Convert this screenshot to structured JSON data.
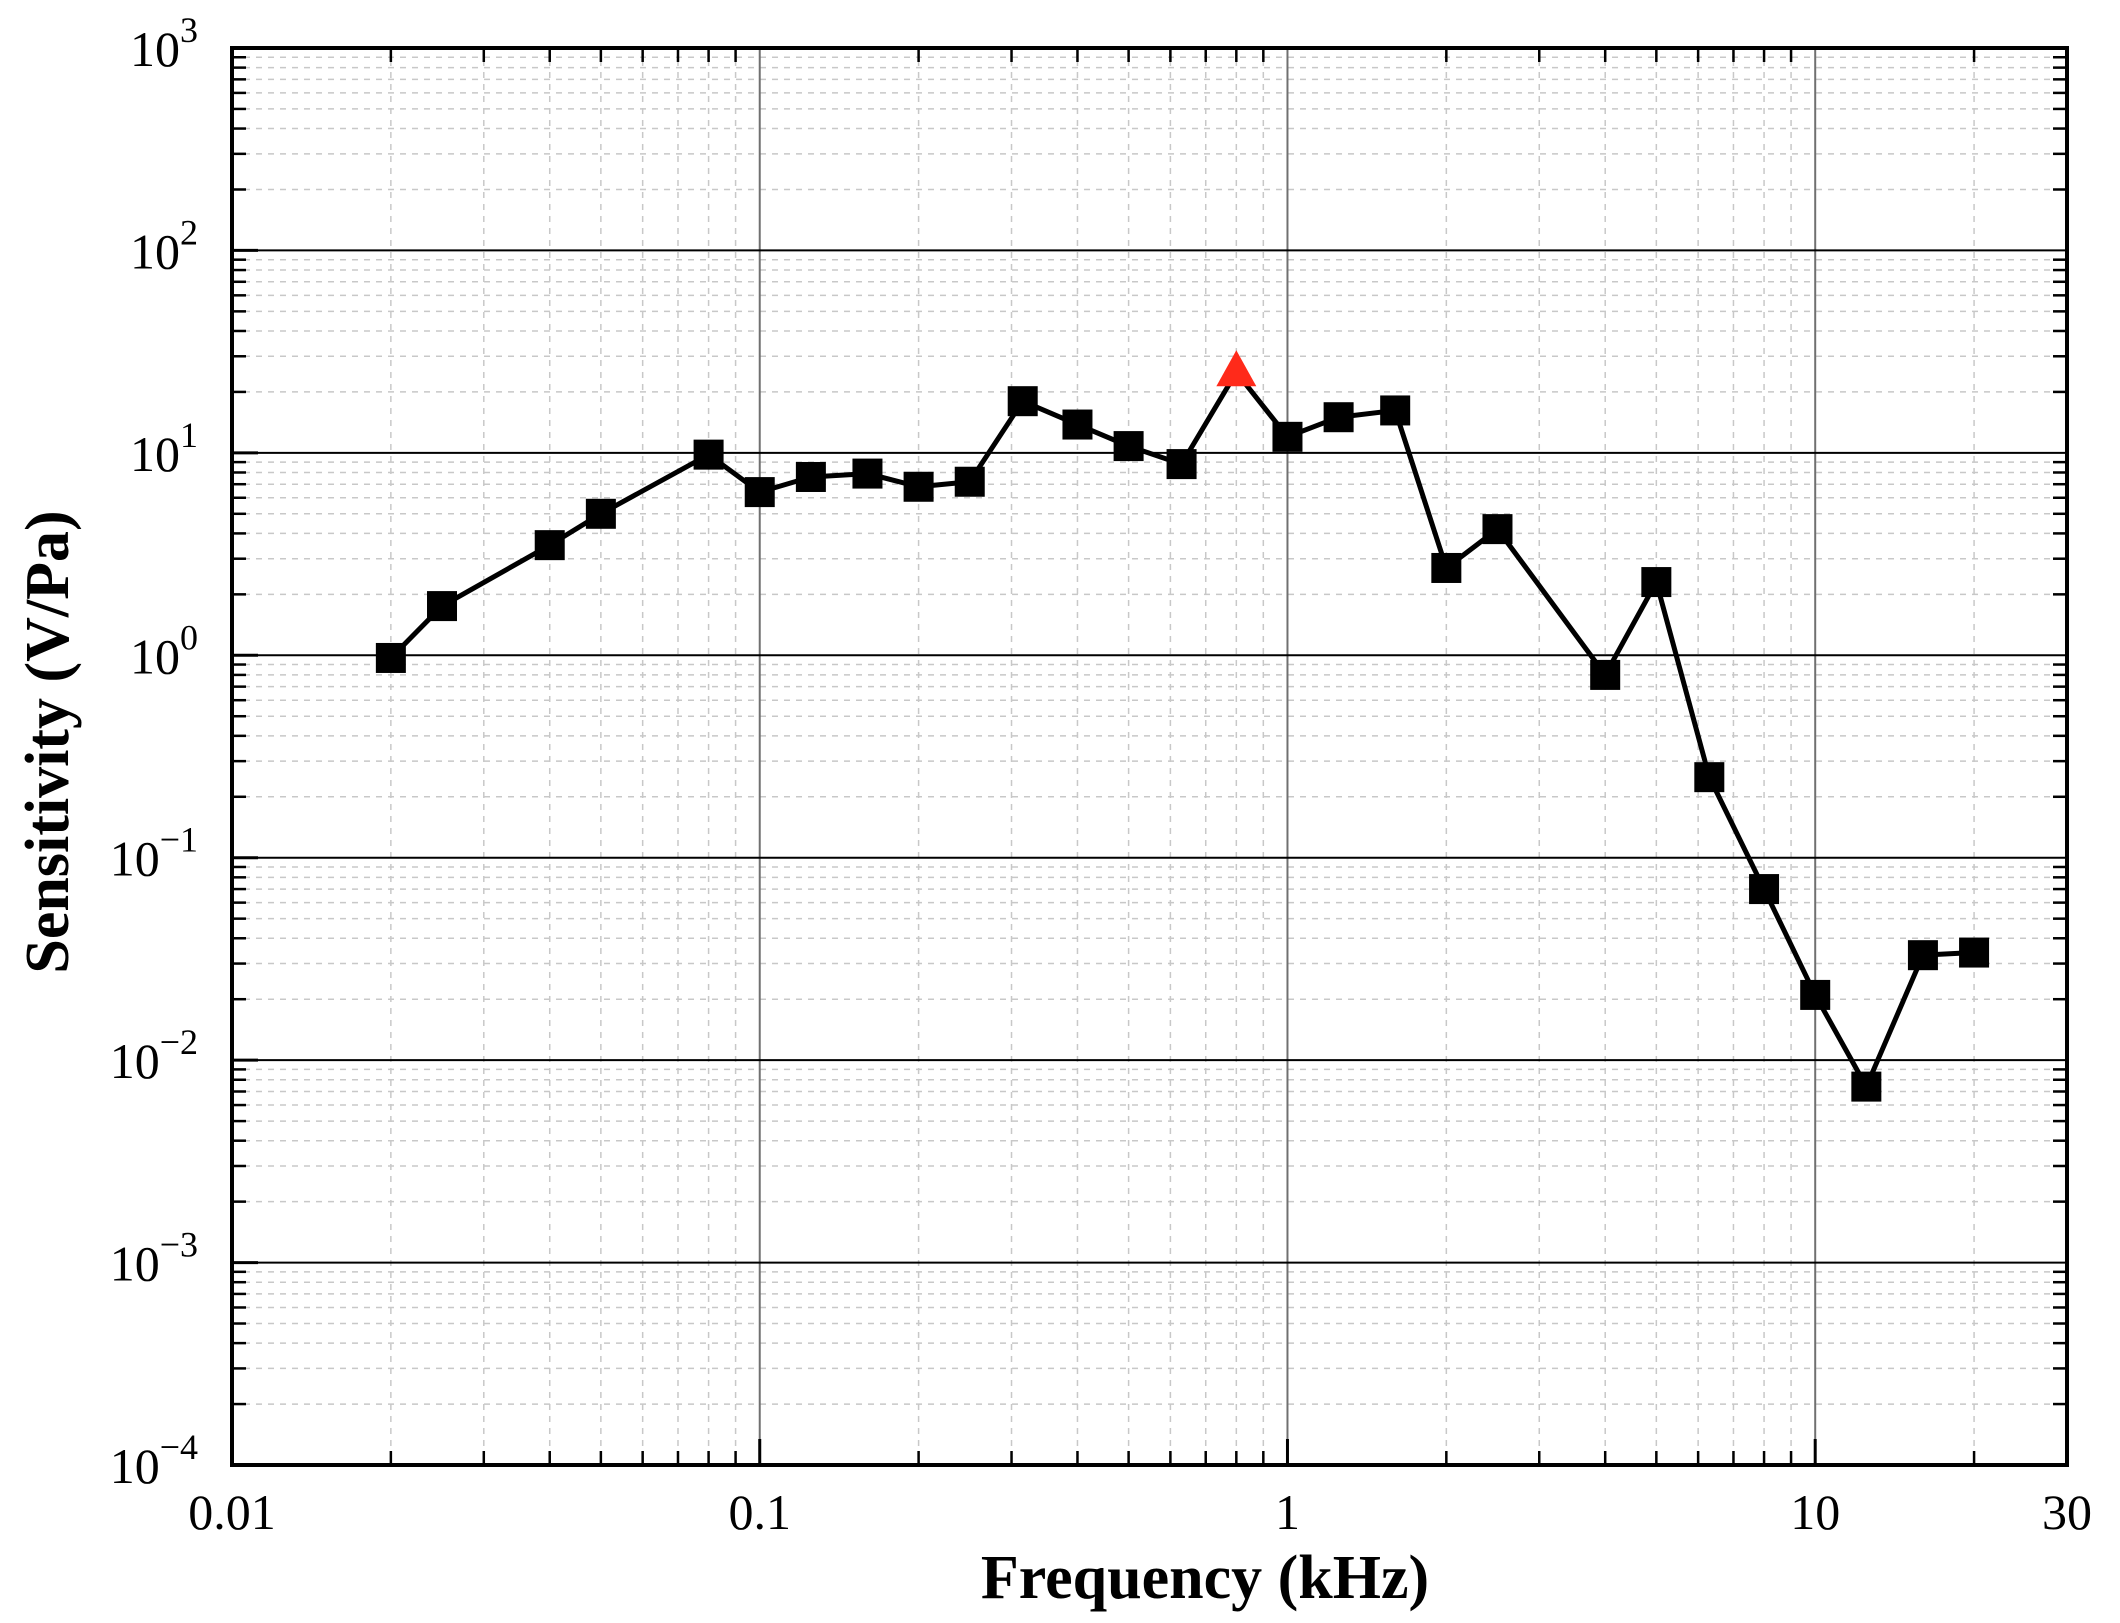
{
  "chart_data": {
    "type": "line",
    "xlabel": "Frequency (kHz)",
    "ylabel": "Sensitivity (V/Pa)",
    "x_scale": "log",
    "y_scale": "log",
    "xlim": [
      0.01,
      30
    ],
    "ylim": [
      0.0001,
      1000
    ],
    "x_ticks": [
      {
        "value": 0.01,
        "label": "0.01"
      },
      {
        "value": 0.1,
        "label": "0.1"
      },
      {
        "value": 1,
        "label": "1"
      },
      {
        "value": 10,
        "label": "10"
      },
      {
        "value": 30,
        "label": "30"
      }
    ],
    "y_ticks": [
      {
        "value": 1000,
        "base": "10",
        "exp": "3"
      },
      {
        "value": 100,
        "base": "10",
        "exp": "2"
      },
      {
        "value": 10,
        "base": "10",
        "exp": "1"
      },
      {
        "value": 1,
        "base": "10",
        "exp": "0"
      },
      {
        "value": 0.1,
        "base": "10",
        "exp": "−1"
      },
      {
        "value": 0.01,
        "base": "10",
        "exp": "−2"
      },
      {
        "value": 0.001,
        "base": "10",
        "exp": "−3"
      },
      {
        "value": 0.0001,
        "base": "10",
        "exp": "−4"
      }
    ],
    "grid": true,
    "line_color": "#000000",
    "marker_color": "#000000",
    "highlight_color": "#ff2a1a",
    "series": [
      {
        "marker": "square",
        "x": [
          0.02,
          0.025,
          0.04,
          0.05,
          0.08,
          0.1,
          0.125,
          0.16,
          0.2,
          0.25,
          0.315,
          0.4,
          0.5,
          0.63,
          0.8,
          1,
          1.25,
          1.6,
          2,
          2.5,
          4,
          5,
          6.3,
          8,
          10,
          12.5,
          16,
          20
        ],
        "y": [
          0.97,
          1.75,
          3.5,
          5.0,
          9.8,
          6.4,
          7.6,
          7.9,
          6.8,
          7.2,
          18,
          13.8,
          10.8,
          8.8,
          25,
          12,
          15,
          16.2,
          2.7,
          4.2,
          0.8,
          2.3,
          0.25,
          0.07,
          0.021,
          0.0074,
          0.033,
          0.034
        ],
        "highlight_index": 14,
        "highlight_marker": "triangle"
      }
    ]
  }
}
